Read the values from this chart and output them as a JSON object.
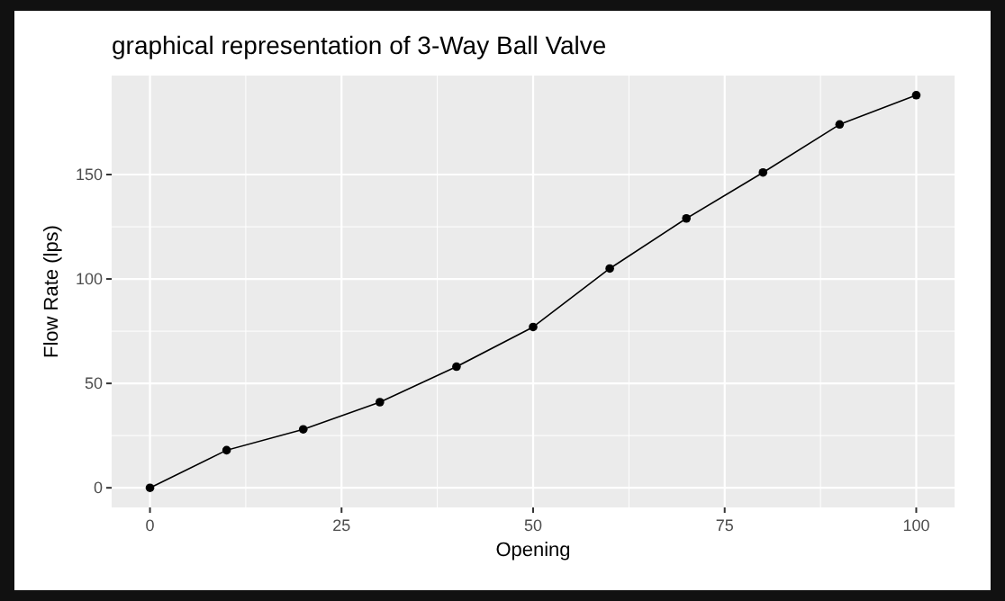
{
  "chart_data": {
    "type": "line",
    "title": "graphical representation of 3-Way Ball Valve",
    "xlabel": "Opening",
    "ylabel": "Flow Rate (lps)",
    "x": [
      0,
      10,
      20,
      30,
      40,
      50,
      60,
      70,
      80,
      90,
      100
    ],
    "series": [
      {
        "color": "#000000",
        "values": [
          0,
          18,
          28,
          41,
          58,
          77,
          105,
          129,
          151,
          174,
          188
        ]
      }
    ],
    "xlim": [
      -5,
      105
    ],
    "ylim": [
      -9.4,
      197.4
    ],
    "xticks": [
      0,
      25,
      50,
      75,
      100
    ],
    "yticks": [
      0,
      50,
      100,
      150
    ],
    "grid": true,
    "marker": "circle",
    "line_style": "solid"
  }
}
